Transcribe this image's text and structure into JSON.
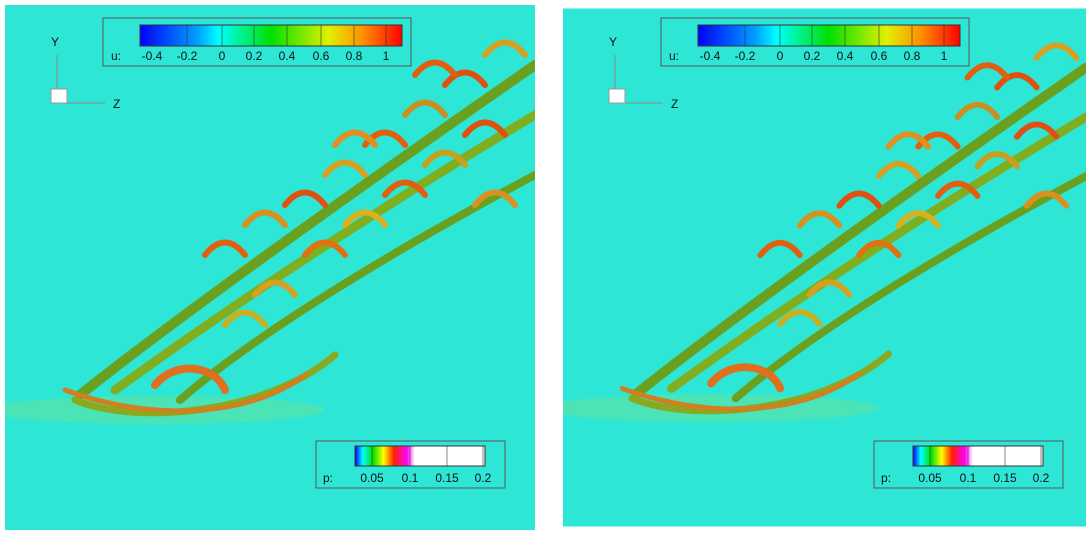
{
  "panels": [
    {
      "axes": {
        "y": "Y",
        "z": "Z"
      },
      "u_colorbar": {
        "label": "u:",
        "ticks": [
          "-0.4",
          "-0.2",
          "0",
          "0.2",
          "0.4",
          "0.6",
          "0.8",
          "1"
        ]
      },
      "p_colorbar": {
        "label": "p:",
        "ticks": [
          "0.05",
          "0.1",
          "0.15",
          "0.2"
        ]
      }
    },
    {
      "axes": {
        "y": "Y",
        "z": "Z"
      },
      "u_colorbar": {
        "label": "u:",
        "ticks": [
          "-0.4",
          "-0.2",
          "0",
          "0.2",
          "0.4",
          "0.6",
          "0.8",
          "1"
        ]
      },
      "p_colorbar": {
        "label": "p:",
        "ticks": [
          "0.05",
          "0.1",
          "0.15",
          "0.2"
        ]
      }
    }
  ]
}
